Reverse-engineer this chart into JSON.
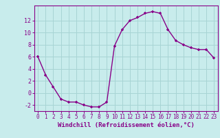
{
  "x": [
    0,
    1,
    2,
    3,
    4,
    5,
    6,
    7,
    8,
    9,
    10,
    11,
    12,
    13,
    14,
    15,
    16,
    17,
    18,
    19,
    20,
    21,
    22,
    23
  ],
  "y": [
    6,
    3,
    1,
    -1,
    -1.5,
    -1.5,
    -2,
    -2.3,
    -2.3,
    -1.5,
    7.8,
    10.5,
    12,
    12.5,
    13.2,
    13.5,
    13.2,
    10.5,
    8.7,
    8,
    7.5,
    7.2,
    7.2,
    5.8
  ],
  "line_color": "#880088",
  "marker": "+",
  "bg_color": "#c8ecec",
  "grid_color": "#a8d4d4",
  "xlabel": "Windchill (Refroidissement éolien,°C)",
  "xlabel_color": "#880088",
  "tick_color": "#880088",
  "spine_color": "#880088",
  "ylim": [
    -3,
    14.5
  ],
  "xlim": [
    -0.5,
    23.5
  ],
  "yticks": [
    -2,
    0,
    2,
    4,
    6,
    8,
    10,
    12
  ],
  "xticks": [
    0,
    1,
    2,
    3,
    4,
    5,
    6,
    7,
    8,
    9,
    10,
    11,
    12,
    13,
    14,
    15,
    16,
    17,
    18,
    19,
    20,
    21,
    22,
    23
  ],
  "xtick_labels": [
    "0",
    "1",
    "2",
    "3",
    "4",
    "5",
    "6",
    "7",
    "8",
    "9",
    "10",
    "11",
    "12",
    "13",
    "14",
    "15",
    "16",
    "17",
    "18",
    "19",
    "20",
    "21",
    "22",
    "23"
  ],
  "line_width": 1.0,
  "marker_size": 3.5,
  "tick_fontsize": 5.5,
  "xlabel_fontsize": 6.5
}
